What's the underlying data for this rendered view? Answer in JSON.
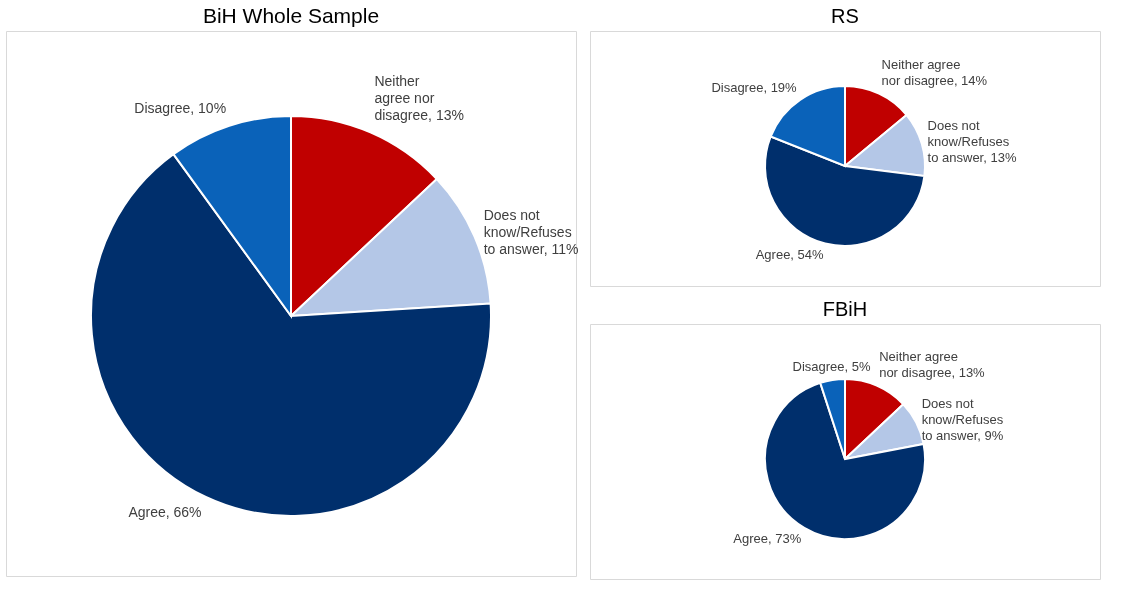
{
  "chart_data": [
    {
      "type": "pie",
      "title": "BiH Whole Sample",
      "categories": [
        "Neither agree nor disagree",
        "Does not know/Refuses to answer",
        "Agree",
        "Disagree"
      ],
      "values": [
        13,
        11,
        66,
        10
      ],
      "value_labels": [
        "13%",
        "11%",
        "66%",
        "10%"
      ],
      "colors": [
        "#c00000",
        "#b4c7e7",
        "#002f6c",
        "#0a62b9"
      ]
    },
    {
      "type": "pie",
      "title": "RS",
      "categories": [
        "Neither agree nor disagree",
        "Does not know/Refuses to answer",
        "Agree",
        "Disagree"
      ],
      "values": [
        14,
        13,
        54,
        19
      ],
      "value_labels": [
        "14%",
        "13%",
        "54%",
        "19%"
      ],
      "colors": [
        "#c00000",
        "#b4c7e7",
        "#002f6c",
        "#0a62b9"
      ]
    },
    {
      "type": "pie",
      "title": "FBiH",
      "categories": [
        "Neither agree nor disagree",
        "Does not know/Refuses to answer",
        "Agree",
        "Disagree"
      ],
      "values": [
        13,
        9,
        73,
        5
      ],
      "value_labels": [
        "13%",
        "9%",
        "73%",
        "5%"
      ],
      "colors": [
        "#c00000",
        "#b4c7e7",
        "#002f6c",
        "#0a62b9"
      ]
    }
  ]
}
